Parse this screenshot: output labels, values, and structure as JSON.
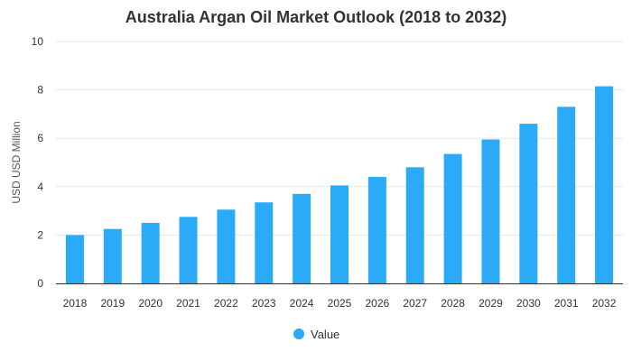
{
  "chart_data": {
    "type": "bar",
    "title": "Australia Argan Oil Market Outlook (2018 to 2032)",
    "xlabel": "",
    "ylabel": "USD USD Million",
    "categories": [
      "2018",
      "2019",
      "2020",
      "2021",
      "2022",
      "2023",
      "2024",
      "2025",
      "2026",
      "2027",
      "2028",
      "2029",
      "2030",
      "2031",
      "2032"
    ],
    "series": [
      {
        "name": "Value",
        "color": "#2aaaf7",
        "values": [
          2.0,
          2.25,
          2.5,
          2.75,
          3.05,
          3.35,
          3.7,
          4.05,
          4.4,
          4.8,
          5.35,
          5.95,
          6.6,
          7.3,
          8.15
        ]
      }
    ],
    "ylim": [
      0,
      10
    ],
    "yticks": [
      0,
      2,
      4,
      6,
      8,
      10
    ],
    "grid": true,
    "legend_position": "bottom"
  }
}
